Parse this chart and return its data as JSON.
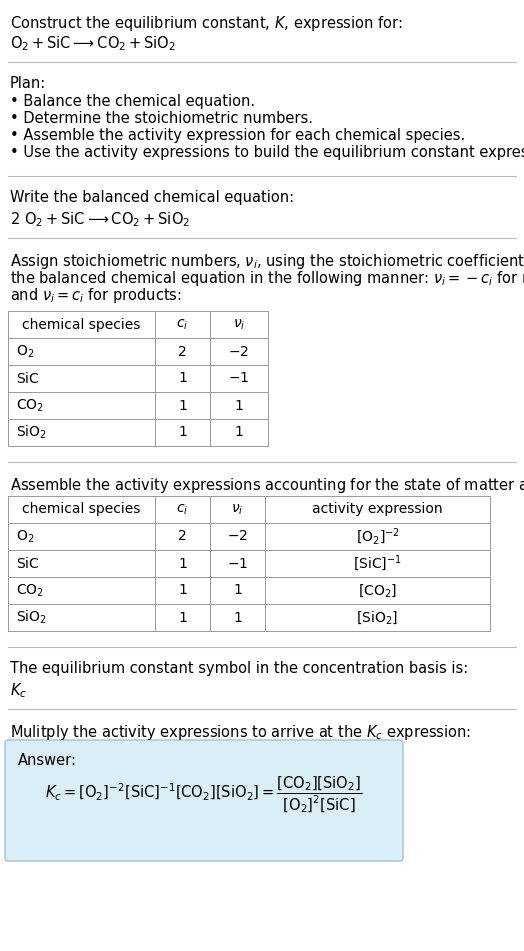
{
  "title_line1": "Construct the equilibrium constant, $K$, expression for:",
  "title_line2": "$\\mathrm{O_2 + SiC \\longrightarrow CO_2 + SiO_2}$",
  "plan_header": "Plan:",
  "plan_steps": [
    "• Balance the chemical equation.",
    "• Determine the stoichiometric numbers.",
    "• Assemble the activity expression for each chemical species.",
    "• Use the activity expressions to build the equilibrium constant expression."
  ],
  "balanced_header": "Write the balanced chemical equation:",
  "balanced_eq": "$\\mathrm{2\\ O_2 + SiC \\longrightarrow CO_2 + SiO_2}$",
  "stoich_intro_parts": [
    "Assign stoichiometric numbers, $\\nu_i$, using the stoichiometric coefficients, $c_i$, from",
    "the balanced chemical equation in the following manner: $\\nu_i = -c_i$ for reactants",
    "and $\\nu_i = c_i$ for products:"
  ],
  "table1_headers": [
    "chemical species",
    "$c_i$",
    "$\\nu_i$"
  ],
  "table1_data": [
    [
      "$\\mathrm{O_2}$",
      "2",
      "$-2$"
    ],
    [
      "$\\mathrm{SiC}$",
      "1",
      "$-1$"
    ],
    [
      "$\\mathrm{CO_2}$",
      "1",
      "$1$"
    ],
    [
      "$\\mathrm{SiO_2}$",
      "1",
      "$1$"
    ]
  ],
  "activity_intro": "Assemble the activity expressions accounting for the state of matter and $\\nu_i$:",
  "table2_headers": [
    "chemical species",
    "$c_i$",
    "$\\nu_i$",
    "activity expression"
  ],
  "table2_data": [
    [
      "$\\mathrm{O_2}$",
      "2",
      "$-2$",
      "$[\\mathrm{O_2}]^{-2}$"
    ],
    [
      "$\\mathrm{SiC}$",
      "1",
      "$-1$",
      "$[\\mathrm{SiC}]^{-1}$"
    ],
    [
      "$\\mathrm{CO_2}$",
      "1",
      "$1$",
      "$[\\mathrm{CO_2}]$"
    ],
    [
      "$\\mathrm{SiO_2}$",
      "1",
      "$1$",
      "$[\\mathrm{SiO_2}]$"
    ]
  ],
  "kc_intro": "The equilibrium constant symbol in the concentration basis is:",
  "kc_symbol": "$K_c$",
  "multiply_intro": "Mulitply the activity expressions to arrive at the $K_c$ expression:",
  "answer_label": "Answer:",
  "answer_box_color": "#daeef8",
  "answer_box_border": "#aaccdd",
  "bg_color": "#ffffff",
  "text_color": "#000000",
  "separator_color": "#bbbbbb",
  "font_size": 10.5,
  "small_font_size": 10.0
}
